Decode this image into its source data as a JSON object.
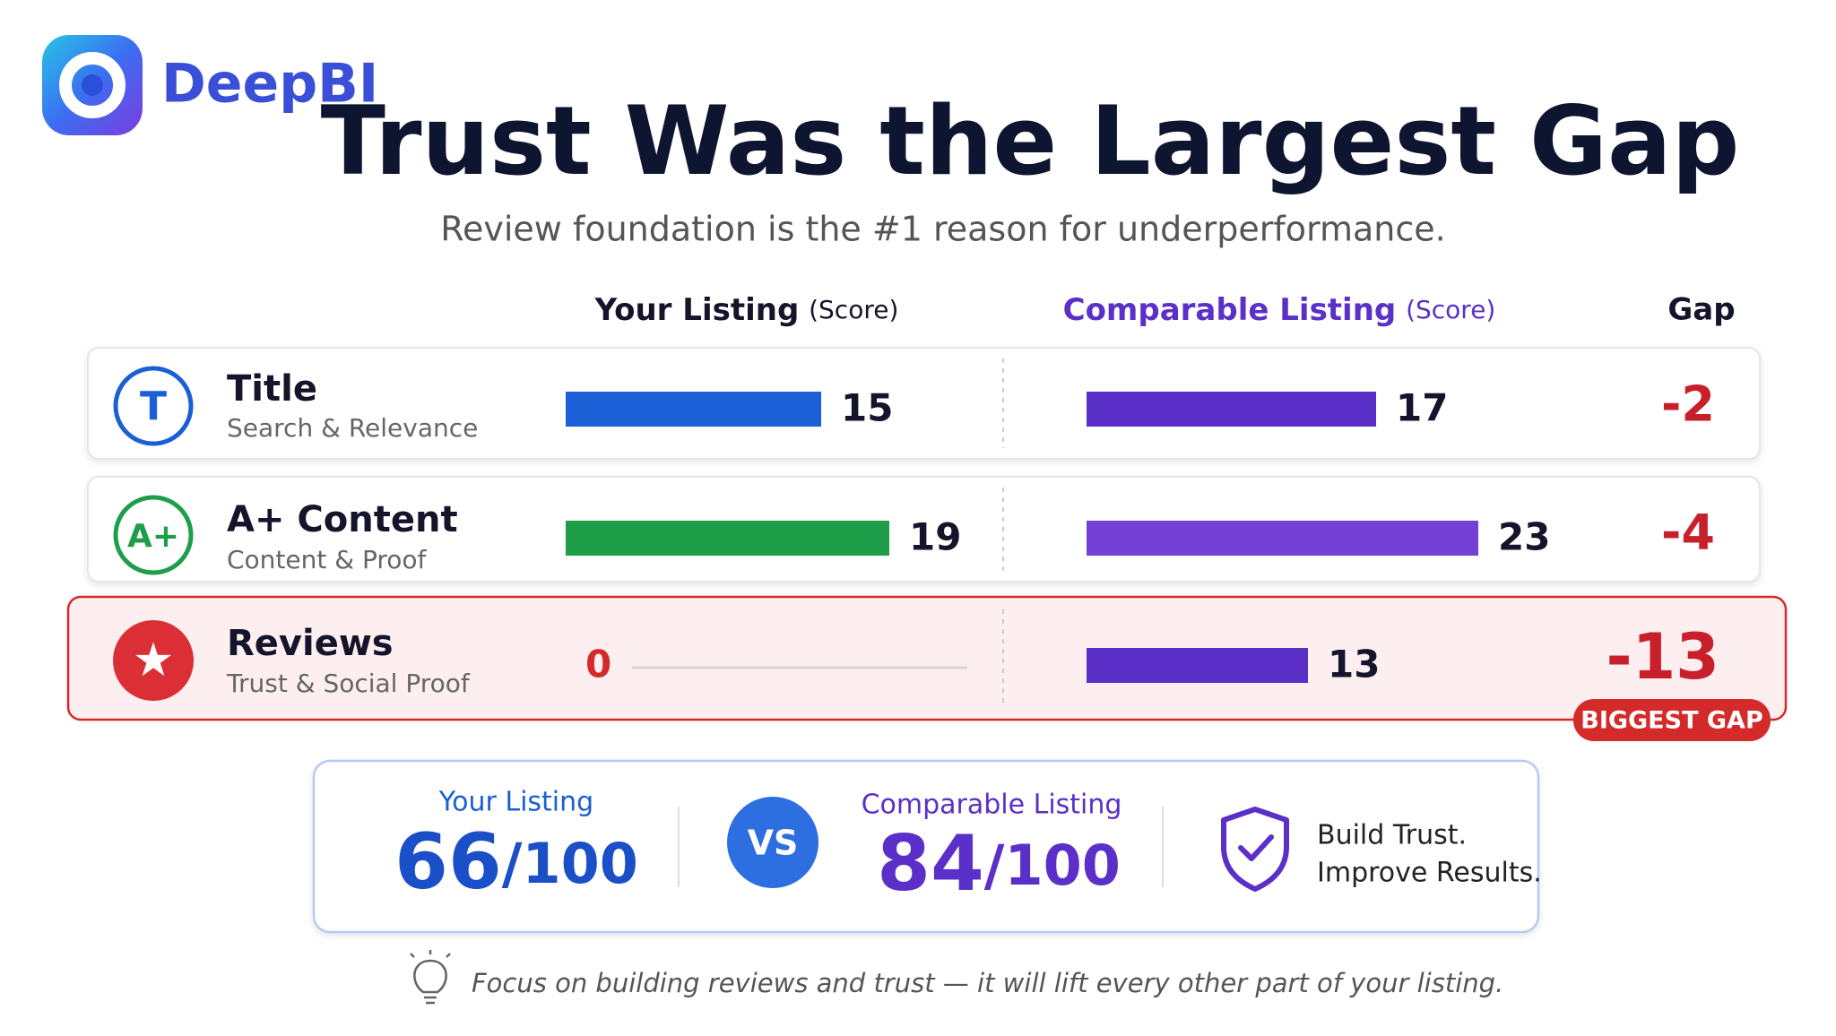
{
  "logo": {
    "text": "DeepBI"
  },
  "header": {
    "title": "Trust Was the Largest Gap",
    "subtitle": "Review foundation is the #1 reason for underperformance."
  },
  "columns": {
    "your": "Your Listing",
    "your_unit": "(Score)",
    "comparable": "Comparable Listing",
    "comparable_unit": "(Score)",
    "gap": "Gap"
  },
  "rows": [
    {
      "icon": "T",
      "name": "Title",
      "subtitle": "Search & Relevance",
      "your_score": 15,
      "comparable_score": 17,
      "gap": -2,
      "your_color": "#1a5fd6",
      "comparable_color": "#5b30c9"
    },
    {
      "icon": "A+",
      "name": "A+ Content",
      "subtitle": "Content & Proof",
      "your_score": 19,
      "comparable_score": 23,
      "gap": -4,
      "your_color": "#1e9e48",
      "comparable_color": "#7440d6"
    },
    {
      "icon": "★",
      "name": "Reviews",
      "subtitle": "Trust & Social Proof",
      "your_score": 0,
      "comparable_score": 13,
      "gap": -13,
      "your_color": "#d42a2a",
      "comparable_color": "#5b30c9",
      "badge": "BIGGEST GAP"
    }
  ],
  "summary": {
    "your_label": "Your Listing",
    "your_score": 66,
    "your_out_of": "/100",
    "vs": "VS",
    "comparable_label": "Comparable Listing",
    "comparable_score": 84,
    "comparable_out_of": "/100",
    "message": [
      "Build Trust.",
      "Improve Results."
    ]
  },
  "footer": {
    "text": "Focus on building reviews and trust — it will lift every other part of your listing."
  }
}
